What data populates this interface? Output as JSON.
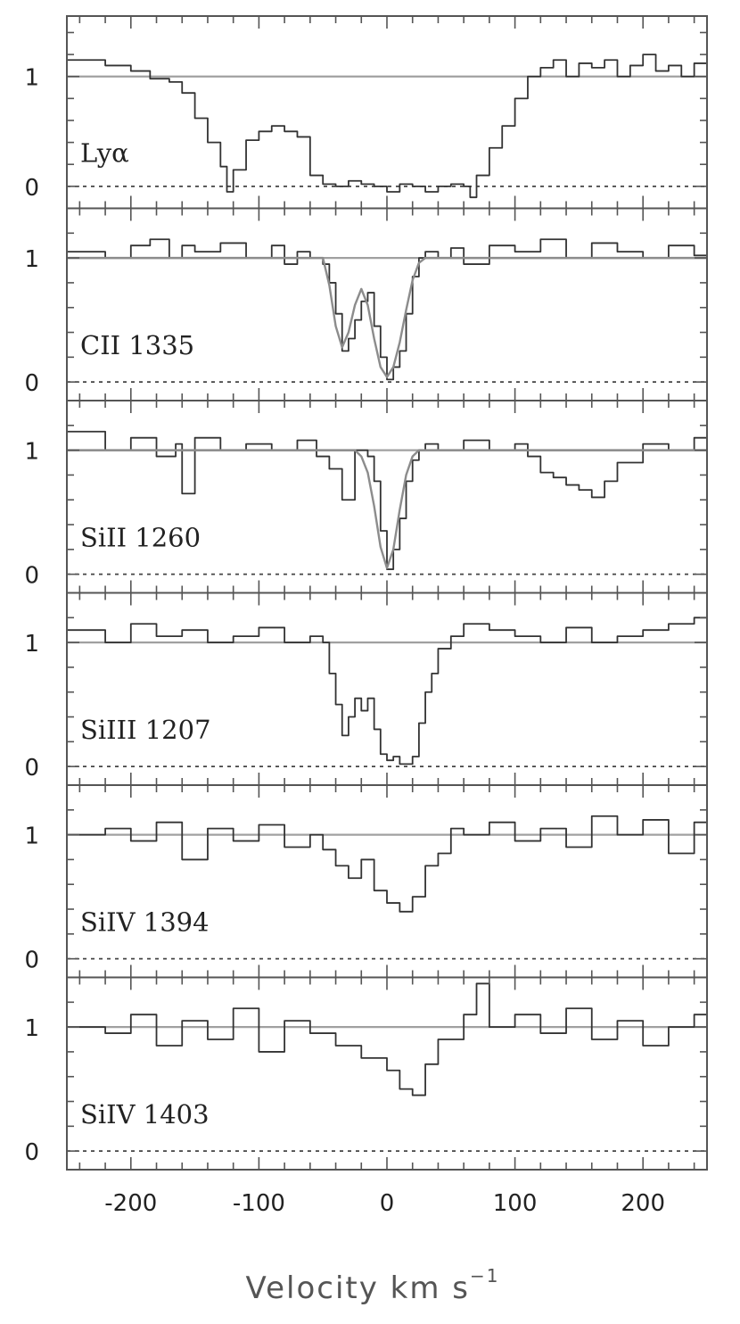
{
  "chart_data": {
    "type": "line",
    "layout": "stacked-panels",
    "xlabel": "Velocity km s",
    "xlabel_superscript": "−1",
    "xlim": [
      -250,
      250
    ],
    "xticks": [
      -200,
      -100,
      0,
      100,
      200
    ],
    "xtick_labels": [
      "-200",
      "-100",
      "0",
      "100",
      "200"
    ],
    "step_plot": true,
    "continuum_level": 1,
    "zero_level": 0,
    "colors": {
      "data": "#333333",
      "fit": "#8c8c8c",
      "continuum": "#a0a0a0",
      "zero_line": "#444444",
      "frame": "#555555"
    },
    "panels": [
      {
        "label": "Lyα",
        "ylim": [
          -0.2,
          1.55
        ],
        "yticks": [
          0,
          1
        ],
        "ytick_labels": [
          "0",
          "1"
        ],
        "series": [
          {
            "x": [
              -250,
              -220,
              -200,
              -185,
              -170,
              -160,
              -150,
              -140,
              -130,
              -125,
              -120,
              -110,
              -100,
              -90,
              -80,
              -70,
              -60,
              -50,
              -40,
              -30,
              -20,
              -10,
              0,
              10,
              20,
              30,
              40,
              50,
              60,
              65,
              70,
              80,
              90,
              100,
              110,
              120,
              130,
              140,
              150,
              160,
              170,
              180,
              190,
              200,
              210,
              220,
              230,
              240,
              250
            ],
            "y": [
              1.15,
              1.1,
              1.05,
              0.98,
              0.95,
              0.85,
              0.62,
              0.4,
              0.18,
              -0.05,
              0.15,
              0.42,
              0.5,
              0.55,
              0.5,
              0.45,
              0.1,
              0.02,
              0.0,
              0.05,
              0.02,
              0.0,
              -0.05,
              0.02,
              0.0,
              -0.05,
              0.0,
              0.02,
              0.0,
              -0.1,
              0.1,
              0.35,
              0.55,
              0.8,
              1.0,
              1.08,
              1.15,
              1.0,
              1.12,
              1.08,
              1.15,
              1.0,
              1.1,
              1.2,
              1.05,
              1.1,
              1.0,
              1.12,
              1.08
            ]
          }
        ]
      },
      {
        "label": "CII  1335",
        "ylim": [
          -0.15,
          1.4
        ],
        "yticks": [
          0,
          1
        ],
        "ytick_labels": [
          "0",
          "1"
        ],
        "series": [
          {
            "x": [
              -250,
              -220,
              -200,
              -185,
              -170,
              -160,
              -150,
              -130,
              -110,
              -90,
              -80,
              -70,
              -60,
              -50,
              -45,
              -40,
              -35,
              -30,
              -25,
              -20,
              -15,
              -10,
              -5,
              0,
              5,
              10,
              15,
              20,
              25,
              30,
              40,
              50,
              60,
              80,
              100,
              120,
              140,
              160,
              180,
              200,
              220,
              240,
              250
            ],
            "y": [
              1.05,
              1.0,
              1.1,
              1.15,
              1.0,
              1.1,
              1.05,
              1.12,
              1.0,
              1.1,
              0.95,
              1.05,
              1.0,
              0.95,
              0.8,
              0.55,
              0.25,
              0.35,
              0.5,
              0.65,
              0.72,
              0.45,
              0.2,
              0.02,
              0.12,
              0.25,
              0.55,
              0.85,
              1.0,
              1.05,
              1.0,
              1.08,
              0.95,
              1.1,
              1.05,
              1.15,
              1.0,
              1.12,
              1.05,
              1.0,
              1.1,
              1.02,
              1.05
            ]
          },
          {
            "name": "",
            "role": "fit",
            "x": [
              -250,
              -50,
              -45,
              -40,
              -35,
              -30,
              -25,
              -20,
              -15,
              -10,
              -5,
              0,
              5,
              10,
              15,
              20,
              25,
              30,
              250
            ],
            "y": [
              1.0,
              1.0,
              0.78,
              0.45,
              0.28,
              0.4,
              0.62,
              0.75,
              0.62,
              0.35,
              0.12,
              0.04,
              0.12,
              0.32,
              0.58,
              0.82,
              0.96,
              1.0,
              1.0
            ]
          }
        ]
      },
      {
        "label": "SiII  1260",
        "ylim": [
          -0.15,
          1.4
        ],
        "yticks": [
          0,
          1
        ],
        "ytick_labels": [
          "0",
          "1"
        ],
        "series": [
          {
            "x": [
              -250,
              -220,
              -200,
              -180,
              -165,
              -160,
              -150,
              -130,
              -110,
              -90,
              -70,
              -55,
              -45,
              -35,
              -25,
              -15,
              -10,
              -5,
              0,
              5,
              10,
              15,
              20,
              25,
              30,
              40,
              60,
              80,
              100,
              110,
              120,
              130,
              140,
              150,
              160,
              170,
              180,
              200,
              220,
              240,
              250
            ],
            "y": [
              1.15,
              1.0,
              1.1,
              0.95,
              1.05,
              0.65,
              1.1,
              1.0,
              1.05,
              1.0,
              1.08,
              0.95,
              0.85,
              0.6,
              1.0,
              0.95,
              0.75,
              0.35,
              0.04,
              0.2,
              0.45,
              0.75,
              0.92,
              1.0,
              1.05,
              1.0,
              1.08,
              1.0,
              1.05,
              0.95,
              0.82,
              0.78,
              0.72,
              0.68,
              0.62,
              0.75,
              0.9,
              1.05,
              1.0,
              1.1,
              1.02
            ]
          },
          {
            "name": "",
            "role": "fit",
            "x": [
              -250,
              -25,
              -20,
              -15,
              -10,
              -5,
              0,
              5,
              10,
              15,
              20,
              25,
              250
            ],
            "y": [
              1.0,
              1.0,
              0.95,
              0.82,
              0.55,
              0.22,
              0.05,
              0.2,
              0.52,
              0.8,
              0.95,
              1.0,
              1.0
            ]
          }
        ]
      },
      {
        "label": "SiIII  1207",
        "ylim": [
          -0.15,
          1.4
        ],
        "yticks": [
          0,
          1
        ],
        "ytick_labels": [
          "0",
          "1"
        ],
        "series": [
          {
            "x": [
              -250,
              -220,
              -200,
              -180,
              -160,
              -140,
              -120,
              -100,
              -80,
              -60,
              -50,
              -45,
              -40,
              -35,
              -30,
              -25,
              -20,
              -15,
              -10,
              -5,
              0,
              5,
              10,
              15,
              20,
              25,
              30,
              35,
              40,
              50,
              60,
              80,
              100,
              120,
              140,
              160,
              180,
              200,
              220,
              240,
              250
            ],
            "y": [
              1.1,
              1.0,
              1.15,
              1.05,
              1.1,
              1.0,
              1.05,
              1.12,
              1.0,
              1.05,
              1.0,
              0.75,
              0.5,
              0.25,
              0.4,
              0.55,
              0.45,
              0.55,
              0.3,
              0.1,
              0.05,
              0.08,
              0.02,
              0.02,
              0.08,
              0.35,
              0.6,
              0.75,
              0.95,
              1.05,
              1.15,
              1.1,
              1.05,
              1.0,
              1.12,
              1.0,
              1.05,
              1.1,
              1.15,
              1.2,
              1.1
            ]
          }
        ]
      },
      {
        "label": "SiIV  1394",
        "ylim": [
          -0.15,
          1.4
        ],
        "yticks": [
          0,
          1
        ],
        "ytick_labels": [
          "0",
          "1"
        ],
        "series": [
          {
            "x": [
              -250,
              -220,
              -200,
              -180,
              -160,
              -140,
              -120,
              -100,
              -80,
              -60,
              -50,
              -40,
              -30,
              -20,
              -10,
              0,
              10,
              20,
              30,
              40,
              50,
              60,
              80,
              100,
              120,
              140,
              160,
              180,
              200,
              220,
              240,
              250
            ],
            "y": [
              1.0,
              1.05,
              0.95,
              1.1,
              0.8,
              1.05,
              0.95,
              1.08,
              0.9,
              1.0,
              0.88,
              0.75,
              0.65,
              0.8,
              0.55,
              0.45,
              0.38,
              0.5,
              0.75,
              0.85,
              1.05,
              1.0,
              1.1,
              0.95,
              1.05,
              0.9,
              1.15,
              1.0,
              1.12,
              0.85,
              1.1,
              1.05
            ]
          }
        ]
      },
      {
        "label": "SiIV  1403",
        "ylim": [
          -0.15,
          1.4
        ],
        "yticks": [
          0,
          1
        ],
        "ytick_labels": [
          "0",
          "1"
        ],
        "series": [
          {
            "x": [
              -250,
              -220,
              -200,
              -180,
              -160,
              -140,
              -120,
              -100,
              -80,
              -60,
              -40,
              -20,
              0,
              10,
              20,
              30,
              40,
              60,
              70,
              80,
              100,
              120,
              140,
              160,
              180,
              200,
              220,
              240,
              250
            ],
            "y": [
              1.0,
              0.95,
              1.1,
              0.85,
              1.05,
              0.9,
              1.15,
              0.8,
              1.05,
              0.95,
              0.85,
              0.75,
              0.65,
              0.5,
              0.45,
              0.7,
              0.9,
              1.1,
              1.35,
              1.0,
              1.1,
              0.95,
              1.15,
              0.9,
              1.05,
              0.85,
              1.0,
              1.1,
              1.05
            ]
          }
        ]
      }
    ]
  }
}
